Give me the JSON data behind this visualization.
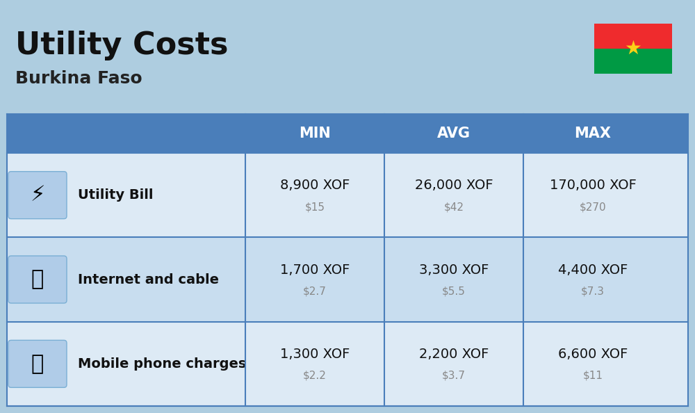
{
  "title": "Utility Costs",
  "subtitle": "Burkina Faso",
  "background_color": "#aecde0",
  "header_bg_color": "#4a7eba",
  "header_text_color": "#ffffff",
  "row_bg_color_1": "#ddeaf5",
  "row_bg_color_2": "#c8ddef",
  "col_divider_color": "#4a7eba",
  "headers": [
    "",
    "",
    "MIN",
    "AVG",
    "MAX"
  ],
  "rows": [
    {
      "label": "Utility Bill",
      "min_xof": "8,900 XOF",
      "min_usd": "$15",
      "avg_xof": "26,000 XOF",
      "avg_usd": "$42",
      "max_xof": "170,000 XOF",
      "max_usd": "$270"
    },
    {
      "label": "Internet and cable",
      "min_xof": "1,700 XOF",
      "min_usd": "$2.7",
      "avg_xof": "3,300 XOF",
      "avg_usd": "$5.5",
      "max_xof": "4,400 XOF",
      "max_usd": "$7.3"
    },
    {
      "label": "Mobile phone charges",
      "min_xof": "1,300 XOF",
      "min_usd": "$2.2",
      "avg_xof": "2,200 XOF",
      "avg_usd": "$3.7",
      "max_xof": "6,600 XOF",
      "max_usd": "$11"
    }
  ],
  "flag_top_color": "#ef2b2d",
  "flag_bottom_color": "#009a44",
  "flag_star_color": "#fcd116",
  "title_fontsize": 32,
  "subtitle_fontsize": 18,
  "header_fontsize": 15,
  "label_fontsize": 14,
  "value_fontsize": 14,
  "usd_fontsize": 11,
  "usd_color": "#888888",
  "icon_box_face": "#b0cce8",
  "icon_box_edge": "#7aafd4"
}
